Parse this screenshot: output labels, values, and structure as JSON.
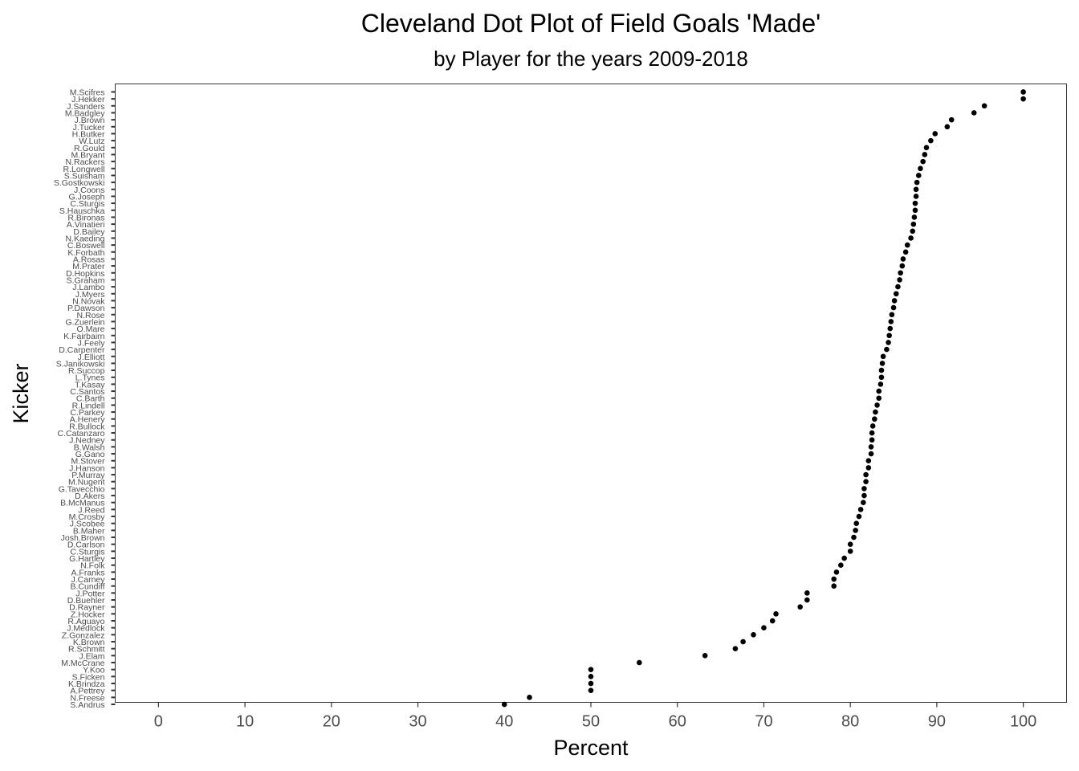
{
  "chart_data": {
    "type": "scatter",
    "title": "Cleveland Dot Plot of Field Goals 'Made'",
    "subtitle": "by Player for the years 2009-2018",
    "xlabel": "Percent",
    "ylabel": "Kicker",
    "xlim": [
      -5,
      105
    ],
    "xticks": [
      0,
      10,
      20,
      30,
      40,
      50,
      60,
      70,
      80,
      90,
      100
    ],
    "grid": false,
    "point_color": "#000000",
    "categories": [
      "S.Andrus",
      "N.Freese",
      "A.Pettrey",
      "K.Brindza",
      "S.Ficken",
      "Y.Koo",
      "M.McCrane",
      "J.Elam",
      "R.Schmitt",
      "K.Brown",
      "Z.Gonzalez",
      "J.Medlock",
      "R.Aguayo",
      "Z.Hocker",
      "D.Rayner",
      "D.Buehler",
      "J.Potter",
      "B.Cundiff",
      "J.Carney",
      "A.Franks",
      "N.Folk",
      "G.Hartley",
      "C.Sturgis",
      "D.Carlson",
      "Josh.Brown",
      "B.Maher",
      "J.Scobee",
      "M.Crosby",
      "J.Reed",
      "B.McManus",
      "D.Akers",
      "G.Tavecchio",
      "M.Nugent",
      "P.Murray",
      "J.Hanson",
      "M.Stover",
      "G.Gano",
      "B.Walsh",
      "J.Nedney",
      "C.Catanzaro",
      "R.Bullock",
      "A.Henery",
      "C.Parkey",
      "R.Lindell",
      "C.Barth",
      "C.Santos",
      "T.Kasay",
      "L.Tynes",
      "R.Succop",
      "S.Janikowski",
      "J.Elliott",
      "D.Carpenter",
      "J.Feely",
      "K.Fairbairn",
      "O.Mare",
      "G.Zuerlein",
      "N.Rose",
      "P.Dawson",
      "N.Novak",
      "J.Myers",
      "J.Lambo",
      "S.Graham",
      "D.Hopkins",
      "M.Prater",
      "A.Rosas",
      "K.Forbath",
      "C.Boswell",
      "N.Kaeding",
      "D.Bailey",
      "A.Vinatieri",
      "R.Bironas",
      "S.Hauschka",
      "C.Sturgis",
      "G.Joseph",
      "J.Coons",
      "S.Gostkowski",
      "S.Suisham",
      "R.Longwell",
      "N.Rackers",
      "M.Bryant",
      "R.Gould",
      "W.Lutz",
      "H.Butker",
      "J.Tucker",
      "J.Brown",
      "M.Badgley",
      "J.Sanders",
      "J.Hekker",
      "M.Scifres"
    ],
    "values": [
      40.0,
      42.9,
      50.0,
      50.0,
      50.0,
      50.0,
      55.6,
      63.2,
      66.7,
      67.6,
      68.8,
      70.0,
      71.0,
      71.4,
      74.2,
      75.0,
      75.0,
      78.1,
      78.1,
      78.4,
      78.9,
      79.3,
      80.0,
      80.0,
      80.4,
      80.6,
      80.7,
      81.0,
      81.2,
      81.5,
      81.6,
      81.6,
      81.8,
      81.8,
      82.1,
      82.1,
      82.4,
      82.4,
      82.5,
      82.5,
      82.6,
      82.8,
      82.9,
      83.1,
      83.3,
      83.3,
      83.5,
      83.6,
      83.6,
      83.7,
      83.8,
      84.2,
      84.4,
      84.5,
      84.6,
      84.7,
      84.8,
      85.0,
      85.1,
      85.3,
      85.5,
      85.7,
      85.8,
      86.0,
      86.1,
      86.4,
      86.6,
      87.0,
      87.2,
      87.3,
      87.4,
      87.5,
      87.5,
      87.6,
      87.6,
      87.7,
      87.9,
      88.1,
      88.4,
      88.6,
      88.8,
      89.3,
      89.8,
      91.2,
      91.7,
      94.3,
      95.5,
      100.0,
      100.0
    ]
  }
}
